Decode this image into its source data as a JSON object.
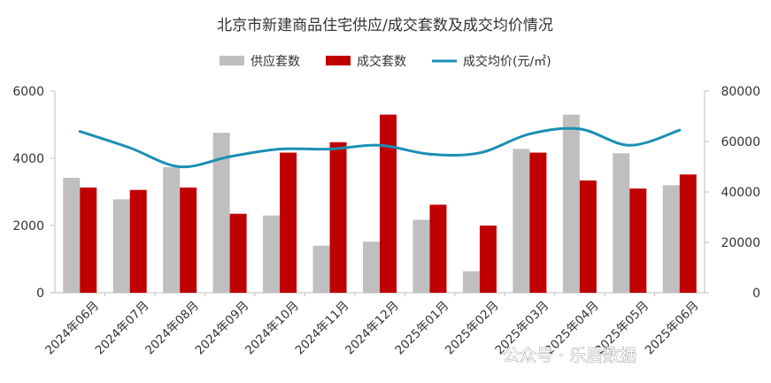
{
  "chart_data": {
    "type": "bar",
    "title": "北京市新建商品住宅供应/成交套数及成交均价情况",
    "categories": [
      "2024年06月",
      "2024年07月",
      "2024年08月",
      "2024年09月",
      "2024年10月",
      "2024年11月",
      "2024年12月",
      "2025年01月",
      "2025年02月",
      "2025年03月",
      "2025年04月",
      "2025年05月",
      "2025年06月"
    ],
    "series": [
      {
        "name": "供应套数",
        "type": "bar",
        "axis": "left",
        "color": "#bfbfbf",
        "values": [
          3420,
          2780,
          3740,
          4760,
          2300,
          1400,
          1520,
          2170,
          640,
          4280,
          5300,
          4150,
          3200
        ]
      },
      {
        "name": "成交套数",
        "type": "bar",
        "axis": "left",
        "color": "#c00000",
        "values": [
          3130,
          3060,
          3130,
          2350,
          4170,
          4480,
          5300,
          2620,
          2000,
          4170,
          3340,
          3100,
          3520
        ]
      },
      {
        "name": "成交均价(元/㎡)",
        "type": "line",
        "axis": "right",
        "color": "#1b8fb3",
        "values": [
          64000,
          57500,
          50000,
          54000,
          57000,
          57000,
          58500,
          55000,
          55500,
          63000,
          65000,
          58500,
          64500
        ]
      }
    ],
    "y_left": {
      "min": 0,
      "max": 6000,
      "ticks": [
        0,
        2000,
        4000,
        6000
      ]
    },
    "y_right": {
      "min": 0,
      "max": 80000,
      "ticks": [
        0,
        20000,
        40000,
        60000,
        80000
      ]
    },
    "legend_placement": "top-center",
    "grid": false
  },
  "watermark": {
    "text": "公众号 · 乐居数据"
  }
}
